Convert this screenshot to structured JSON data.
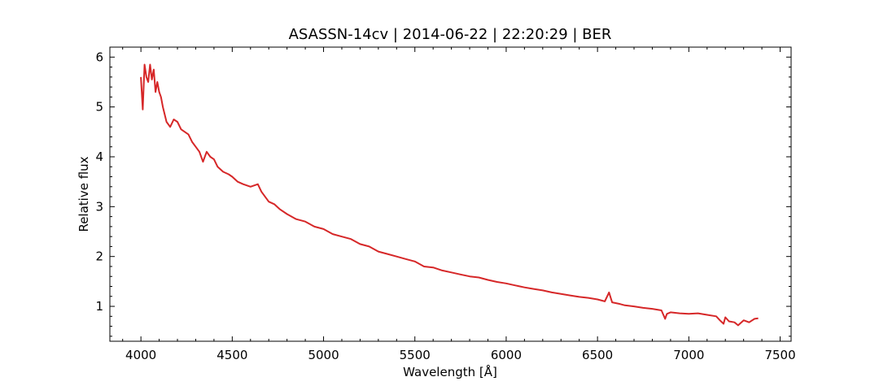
{
  "chart_data": {
    "type": "line",
    "title": "ASASSN-14cv | 2014-06-22 | 22:20:29 | BER",
    "xlabel": "Wavelength [Å]",
    "ylabel": "Relative flux",
    "xlim": [
      3830,
      7560
    ],
    "ylim": [
      0.3,
      6.2
    ],
    "xticks": [
      4000,
      4500,
      5000,
      5500,
      6000,
      6500,
      7000,
      7500
    ],
    "yticks": [
      1,
      2,
      3,
      4,
      5,
      6
    ],
    "grid": false,
    "series": [
      {
        "color": "#d62728",
        "x": [
          4000,
          4010,
          4020,
          4030,
          4040,
          4050,
          4060,
          4070,
          4080,
          4090,
          4100,
          4110,
          4120,
          4140,
          4160,
          4180,
          4200,
          4220,
          4240,
          4260,
          4280,
          4300,
          4320,
          4340,
          4360,
          4380,
          4400,
          4420,
          4450,
          4480,
          4500,
          4530,
          4560,
          4600,
          4640,
          4660,
          4680,
          4700,
          4730,
          4760,
          4800,
          4850,
          4900,
          4950,
          5000,
          5050,
          5100,
          5150,
          5200,
          5250,
          5300,
          5350,
          5400,
          5450,
          5500,
          5550,
          5600,
          5650,
          5700,
          5750,
          5800,
          5850,
          5900,
          5950,
          6000,
          6050,
          6100,
          6150,
          6200,
          6250,
          6300,
          6350,
          6400,
          6450,
          6500,
          6540,
          6563,
          6580,
          6620,
          6650,
          6700,
          6750,
          6800,
          6850,
          6870,
          6880,
          6900,
          6950,
          7000,
          7050,
          7100,
          7150,
          7170,
          7190,
          7200,
          7220,
          7250,
          7270,
          7300,
          7330,
          7360,
          7380
        ],
        "y": [
          5.6,
          4.95,
          5.85,
          5.6,
          5.5,
          5.85,
          5.55,
          5.75,
          5.3,
          5.5,
          5.3,
          5.2,
          5.0,
          4.7,
          4.6,
          4.75,
          4.7,
          4.55,
          4.5,
          4.45,
          4.3,
          4.2,
          4.1,
          3.9,
          4.1,
          4.0,
          3.95,
          3.8,
          3.7,
          3.65,
          3.6,
          3.5,
          3.45,
          3.4,
          3.45,
          3.3,
          3.2,
          3.1,
          3.05,
          2.95,
          2.85,
          2.75,
          2.7,
          2.6,
          2.55,
          2.45,
          2.4,
          2.35,
          2.25,
          2.2,
          2.1,
          2.05,
          2.0,
          1.95,
          1.9,
          1.8,
          1.78,
          1.72,
          1.68,
          1.64,
          1.6,
          1.58,
          1.53,
          1.49,
          1.46,
          1.42,
          1.38,
          1.35,
          1.32,
          1.28,
          1.25,
          1.22,
          1.19,
          1.17,
          1.14,
          1.1,
          1.28,
          1.08,
          1.05,
          1.02,
          1.0,
          0.97,
          0.95,
          0.92,
          0.75,
          0.85,
          0.88,
          0.86,
          0.85,
          0.86,
          0.83,
          0.8,
          0.72,
          0.65,
          0.78,
          0.7,
          0.68,
          0.62,
          0.72,
          0.68,
          0.75,
          0.76
        ]
      }
    ]
  }
}
